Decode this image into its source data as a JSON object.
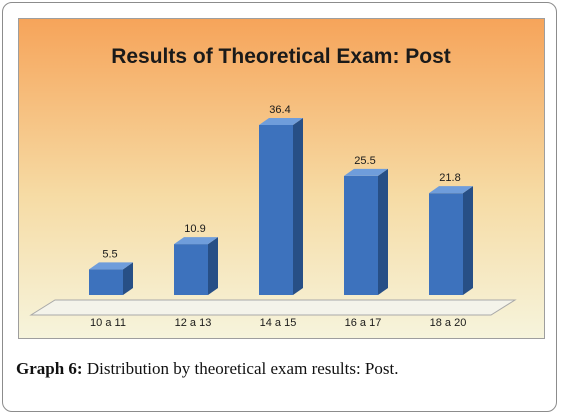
{
  "chart_data": {
    "type": "bar",
    "title": "Results of Theoretical Exam: Post",
    "categories": [
      "10 a 11",
      "12 a 13",
      "14 a 15",
      "16 a 17",
      "18 a 20"
    ],
    "values": [
      5.5,
      10.9,
      36.4,
      25.5,
      21.8
    ],
    "data_labels": [
      "5.5",
      "10.9",
      "36.4",
      "25.5",
      "21.8"
    ],
    "xlabel": "",
    "ylabel": "",
    "ylim": [
      0,
      40
    ],
    "grid": false,
    "legend": "none",
    "style": "3d-column",
    "colors": {
      "bar_front": "#3d72bd",
      "bar_side": "#274f86",
      "bar_top": "#6f9ddb",
      "background_top": "#f6a45a",
      "background_bottom": "#f6f4dc"
    }
  },
  "caption": {
    "label": "Graph 6:",
    "text": " Distribution by theoretical exam results: Post."
  }
}
